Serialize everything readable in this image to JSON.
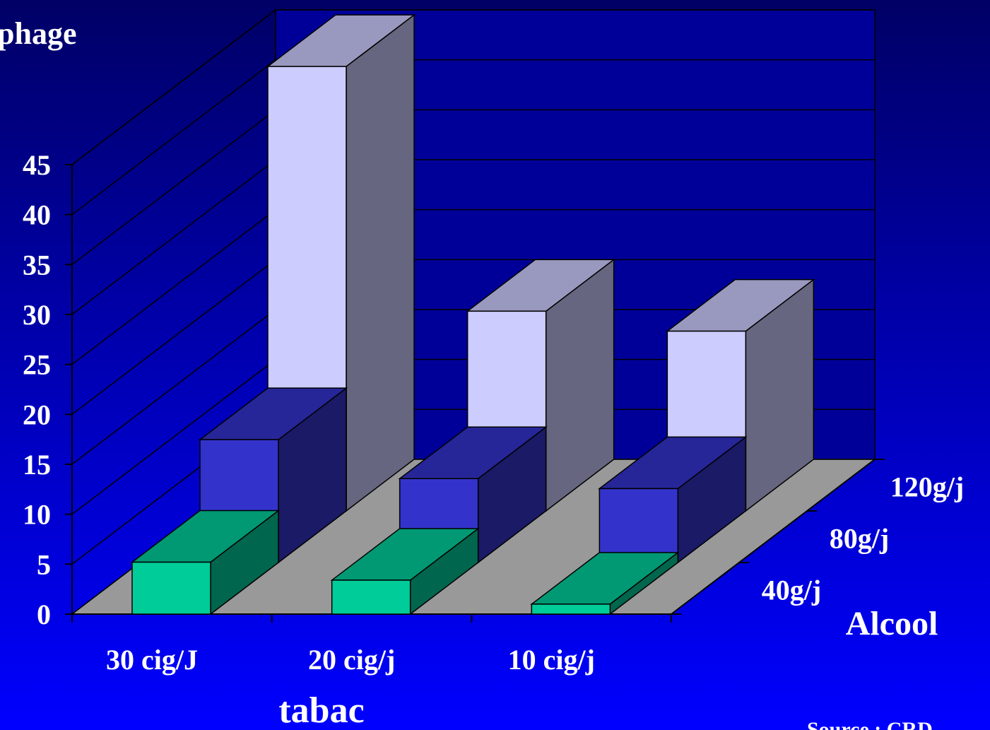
{
  "chart_data": {
    "type": "bar3d",
    "title": "phage",
    "x_label": "tabac",
    "z_label": "Alcool",
    "source": "Source : CRD",
    "categories": [
      "30 cig/J",
      "20 cig/j",
      "10 cig/j"
    ],
    "series": [
      {
        "name": "40g/j",
        "color": "#00cc99",
        "values": [
          5.2,
          3.4,
          1.0
        ]
      },
      {
        "name": "80g/j",
        "color": "#3333cc",
        "values": [
          12.3,
          8.4,
          7.4
        ]
      },
      {
        "name": "120g/j",
        "color": "#ccccff",
        "values": [
          44.5,
          20,
          18
        ]
      }
    ],
    "ylim": [
      0,
      45
    ],
    "yticks": [
      0,
      5,
      10,
      15,
      20,
      25,
      30,
      35,
      40,
      45
    ],
    "grid": true
  }
}
